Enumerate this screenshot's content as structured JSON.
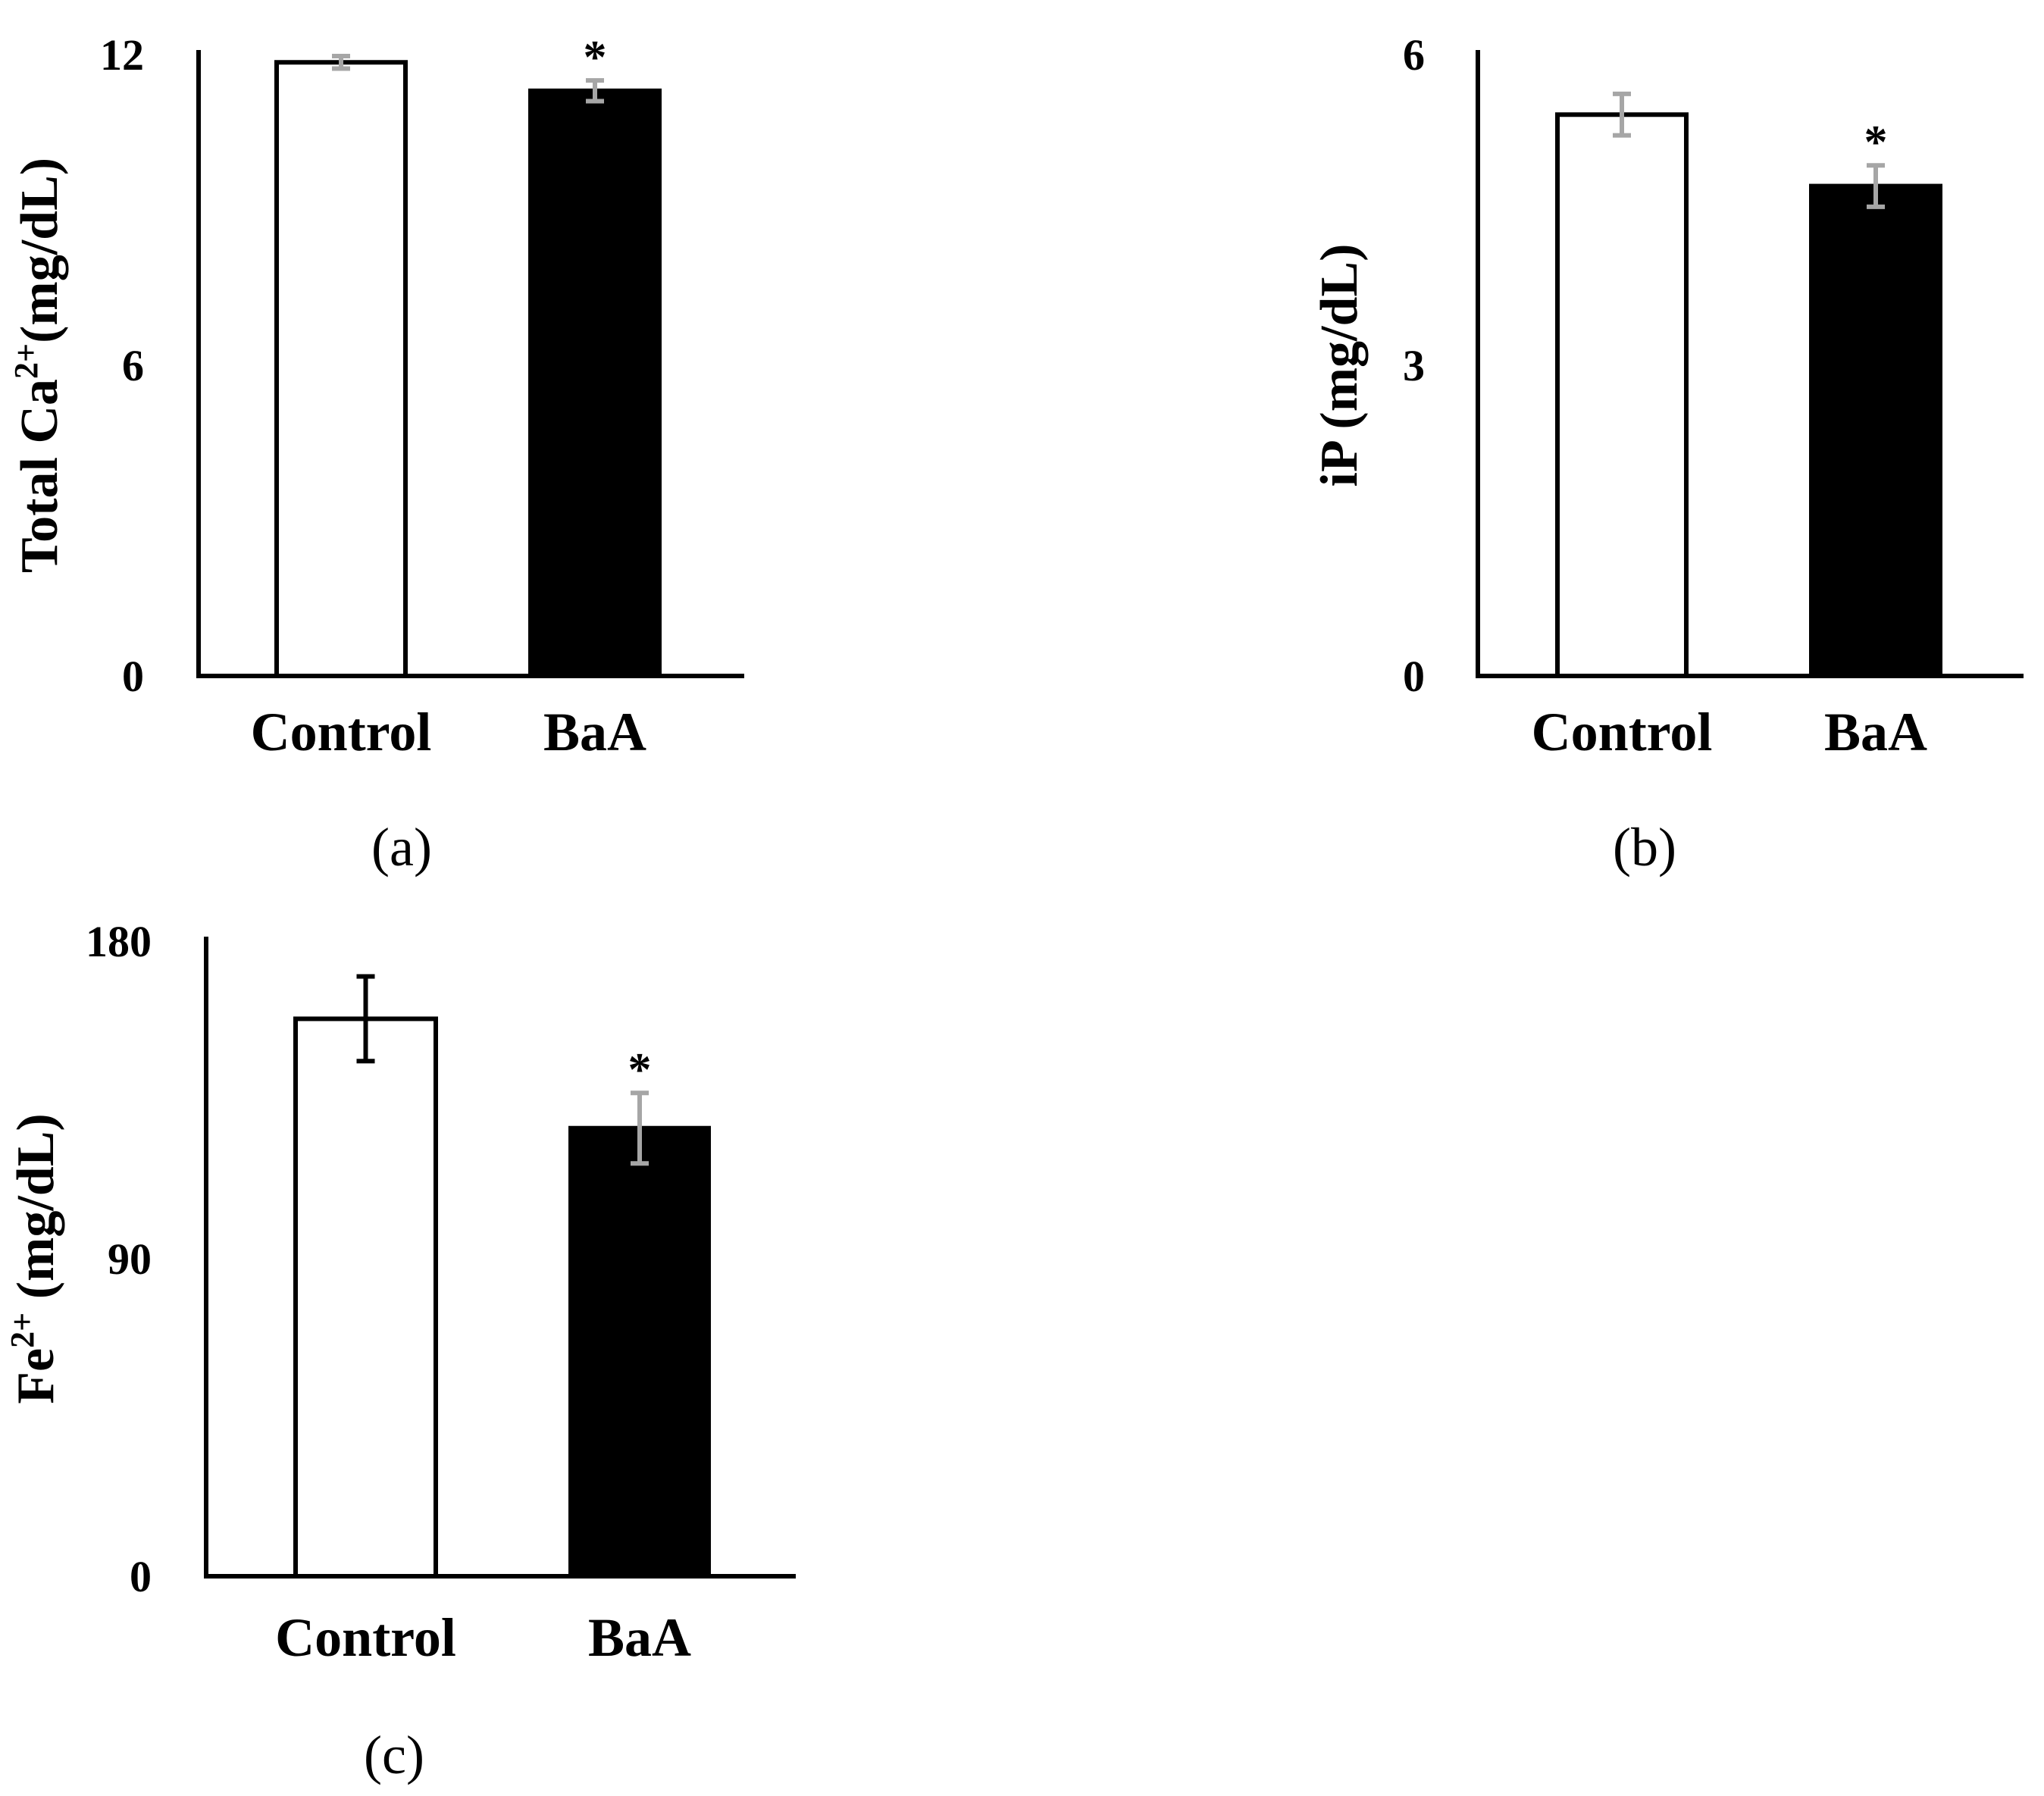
{
  "chart_data": [
    {
      "type": "bar",
      "panel_label": "(a)",
      "categories": [
        "Control",
        "BaA"
      ],
      "values": [
        11.85,
        11.3
      ],
      "errors": [
        0.12,
        0.2
      ],
      "significance": [
        "",
        "*"
      ],
      "ylim": [
        0,
        12
      ],
      "yticks": [
        "0",
        "6",
        "12"
      ],
      "ylabel": {
        "pre": "Total Ca",
        "sup": "2+",
        "post": "(mg/dL)"
      },
      "bar_fills": [
        "#ffffff",
        "#000000"
      ],
      "error_colors": [
        "#a6a6a6",
        "#a6a6a6"
      ]
    },
    {
      "type": "bar",
      "panel_label": "(b)",
      "categories": [
        "Control",
        "BaA"
      ],
      "values": [
        5.42,
        4.73
      ],
      "errors": [
        0.2,
        0.2
      ],
      "significance": [
        "",
        "*"
      ],
      "ylim": [
        0,
        6
      ],
      "yticks": [
        "0",
        "3",
        "6"
      ],
      "ylabel": {
        "pre": "iP (mg/dL)",
        "sup": "",
        "post": ""
      },
      "bar_fills": [
        "#ffffff",
        "#000000"
      ],
      "error_colors": [
        "#a6a6a6",
        "#a6a6a6"
      ]
    },
    {
      "type": "bar",
      "panel_label": "(c)",
      "categories": [
        "Control",
        "BaA"
      ],
      "values": [
        158,
        127
      ],
      "errors": [
        12,
        10
      ],
      "significance": [
        "",
        "*"
      ],
      "ylim": [
        0,
        180
      ],
      "yticks": [
        "0",
        "90",
        "180"
      ],
      "ylabel": {
        "pre": "Fe",
        "sup": "2+",
        "post": " (mg/dL)"
      },
      "bar_fills": [
        "#ffffff",
        "#000000"
      ],
      "error_colors": [
        "#000000",
        "#a6a6a6"
      ]
    }
  ]
}
